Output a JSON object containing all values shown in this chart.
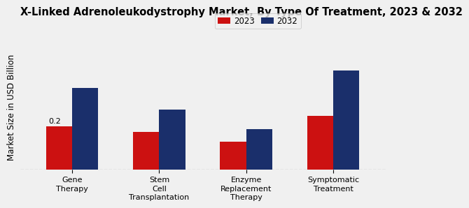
{
  "title": "X-Linked Adrenoleukodystrophy Market, By Type Of Treatment, 2023 & 2032",
  "ylabel": "Market Size in USD Billion",
  "categories": [
    "Gene\nTherapy",
    "Stem\nCell\nTransplantation",
    "Enzyme\nReplacement\nTherapy",
    "Symptomatic\nTreatment"
  ],
  "values_2023": [
    0.2,
    0.175,
    0.13,
    0.25
  ],
  "values_2032": [
    0.38,
    0.28,
    0.19,
    0.46
  ],
  "color_2023": "#cc1111",
  "color_2032": "#1a2f6b",
  "label_2023": "2023",
  "label_2032": "2032",
  "annotation_value": "0.2",
  "annotation_bar_index": 0,
  "ylim": [
    0,
    0.58
  ],
  "bar_width": 0.3,
  "background_color": "#f0f0f0",
  "title_fontsize": 10.5,
  "axis_label_fontsize": 8.5,
  "tick_fontsize": 8,
  "legend_fontsize": 8.5,
  "grid_color": "#999999"
}
